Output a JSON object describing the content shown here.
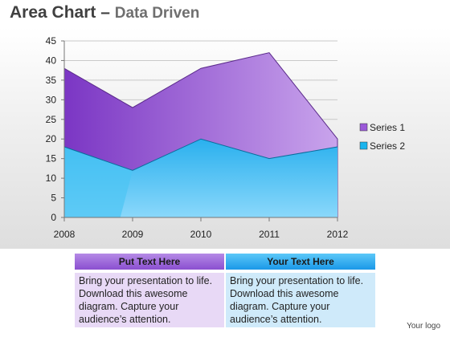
{
  "header": {
    "title_main": "Area Chart –",
    "title_sub": "Data Driven"
  },
  "chart_data": {
    "type": "area",
    "categories": [
      "2008",
      "2009",
      "2010",
      "2011",
      "2012"
    ],
    "x": [
      2008,
      2009,
      2010,
      2011,
      2012
    ],
    "series": [
      {
        "name": "Series 1",
        "values": [
          38,
          28,
          38,
          42,
          20
        ],
        "color": "#9b59d9"
      },
      {
        "name": "Series 2",
        "values": [
          18,
          12,
          20,
          15,
          18
        ],
        "color": "#19b4ee"
      }
    ],
    "ylim": [
      0,
      45
    ],
    "yticks": [
      0,
      5,
      10,
      15,
      20,
      25,
      30,
      35,
      40,
      45
    ],
    "grid": true,
    "legend": "right"
  },
  "table": {
    "col1": {
      "header": "Put Text Here",
      "body": "Bring your presentation to life. Download this awesome diagram. Capture your audience’s attention."
    },
    "col2": {
      "header": "Your Text Here",
      "body": "Bring your presentation to life. Download this awesome diagram. Capture your audience’s attention."
    }
  },
  "footer": {
    "logo": "Your logo"
  }
}
